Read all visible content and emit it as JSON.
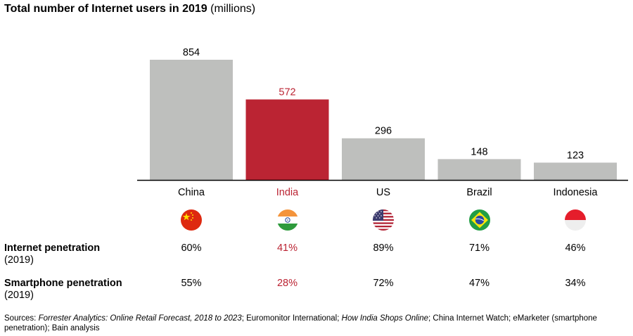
{
  "title": {
    "bold": "Total number of Internet users in 2019",
    "unit": "(millions)"
  },
  "colors": {
    "bar_default": "#bebfbd",
    "highlight": "#bb2433",
    "axis": "#000000"
  },
  "chart_data": {
    "type": "bar",
    "title": "Total number of Internet users in 2019 (millions)",
    "categories": [
      "China",
      "India",
      "US",
      "Brazil",
      "Indonesia"
    ],
    "values": [
      854,
      572,
      296,
      148,
      123
    ],
    "highlight": "India",
    "ylim": [
      0,
      854
    ],
    "grid": false,
    "legend": "none"
  },
  "flags": [
    {
      "country": "China",
      "icon": "china-flag-icon"
    },
    {
      "country": "India",
      "icon": "india-flag-icon"
    },
    {
      "country": "US",
      "icon": "us-flag-icon"
    },
    {
      "country": "Brazil",
      "icon": "brazil-flag-icon"
    },
    {
      "country": "Indonesia",
      "icon": "indonesia-flag-icon"
    }
  ],
  "rows": {
    "internet": {
      "label": "Internet penetration",
      "sub": "(2019)",
      "values": [
        "60%",
        "41%",
        "89%",
        "71%",
        "46%"
      ]
    },
    "smartphone": {
      "label": "Smartphone penetration",
      "sub": "(2019)",
      "values": [
        "55%",
        "28%",
        "72%",
        "47%",
        "34%"
      ]
    }
  },
  "source": {
    "prefix": "Sources: ",
    "s1": "Forrester Analytics: Online Retail Forecast, 2018 to 2023",
    "t1": "; Euromonitor International; ",
    "s2": "How India Shops Online",
    "t2": "; China Internet Watch; eMarketer (smartphone penetration); Bain analysis"
  }
}
